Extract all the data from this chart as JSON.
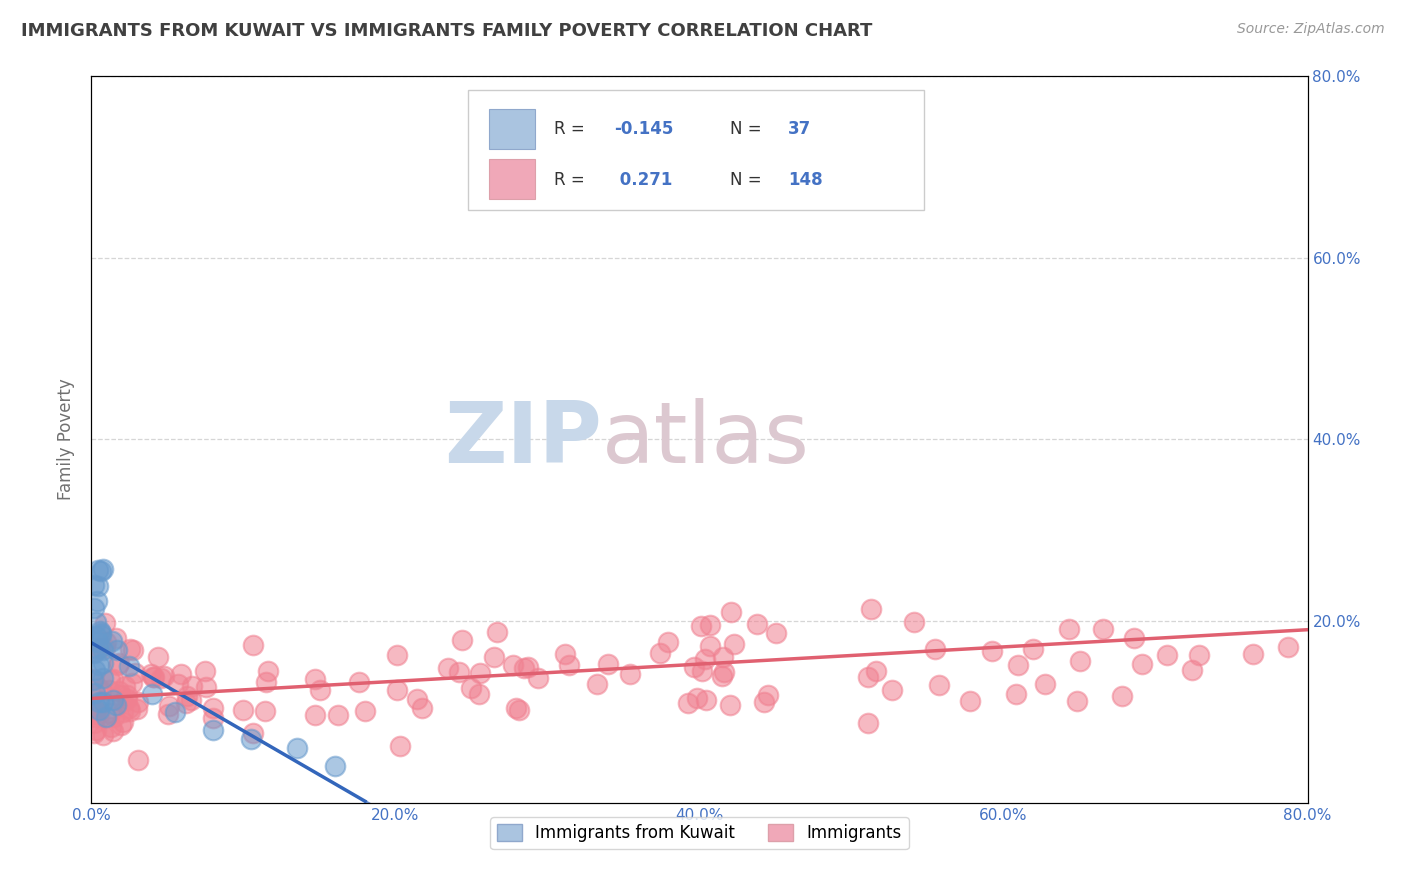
{
  "title": "IMMIGRANTS FROM KUWAIT VS IMMIGRANTS FAMILY POVERTY CORRELATION CHART",
  "source": "Source: ZipAtlas.com",
  "ylabel": "Family Poverty",
  "xlim": [
    0,
    0.8
  ],
  "ylim": [
    0,
    0.8
  ],
  "xtick_vals": [
    0.0,
    0.2,
    0.4,
    0.6,
    0.8
  ],
  "xtick_labels": [
    "0.0%",
    "20.0%",
    "40.0%",
    "60.0%",
    "80.0%"
  ],
  "ytick_vals": [
    0.2,
    0.4,
    0.6,
    0.8
  ],
  "ytick_labels": [
    "20.0%",
    "40.0%",
    "60.0%",
    "80.0%"
  ],
  "legend_label1": "Immigrants from Kuwait",
  "legend_label2": "Immigrants",
  "R1": -0.145,
  "N1": 37,
  "R2": 0.271,
  "N2": 148,
  "color1": "#6699cc",
  "color2": "#f08090",
  "line_color1": "#3366bb",
  "line_color2": "#e06070",
  "text_color": "#4472c4",
  "title_color": "#404040",
  "watermark_zip": "ZIP",
  "watermark_atlas": "atlas",
  "watermark_color_zip": "#c5d5e5",
  "watermark_color_atlas": "#c8b8c8",
  "background_color": "#ffffff",
  "grid_color": "#cccccc"
}
